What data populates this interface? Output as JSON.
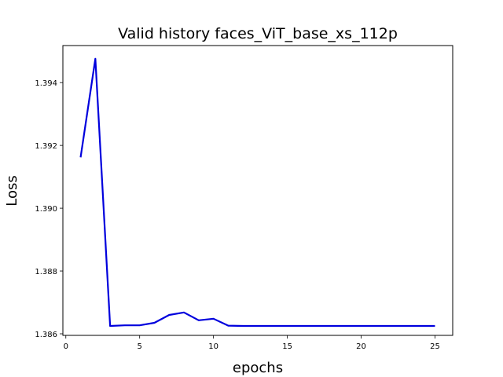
{
  "chart_data": {
    "type": "line",
    "title": "Valid history faces_ViT_base_xs_112p",
    "xlabel": "epochs",
    "ylabel": "Loss",
    "xlim": [
      -0.2,
      26.2
    ],
    "ylim": [
      1.38595,
      1.39518
    ],
    "xticks": [
      0,
      5,
      10,
      15,
      20,
      25
    ],
    "yticks": [
      1.386,
      1.388,
      1.39,
      1.392,
      1.394
    ],
    "ytick_labels": [
      "1.386",
      "1.388",
      "1.390",
      "1.392",
      "1.394"
    ],
    "grid": false,
    "legend": false,
    "series": [
      {
        "color": "#0000dd",
        "x": [
          1,
          2,
          3,
          4,
          5,
          6,
          7,
          8,
          9,
          10,
          11,
          12,
          13,
          14,
          15,
          16,
          17,
          18,
          19,
          20,
          21,
          22,
          23,
          24,
          25
        ],
        "values": [
          1.39162,
          1.39476,
          1.38625,
          1.38627,
          1.38627,
          1.38635,
          1.3866,
          1.38668,
          1.38643,
          1.38648,
          1.38626,
          1.38625,
          1.38625,
          1.38625,
          1.38625,
          1.38625,
          1.38625,
          1.38625,
          1.38625,
          1.38625,
          1.38625,
          1.38625,
          1.38625,
          1.38625,
          1.38625
        ]
      }
    ]
  }
}
